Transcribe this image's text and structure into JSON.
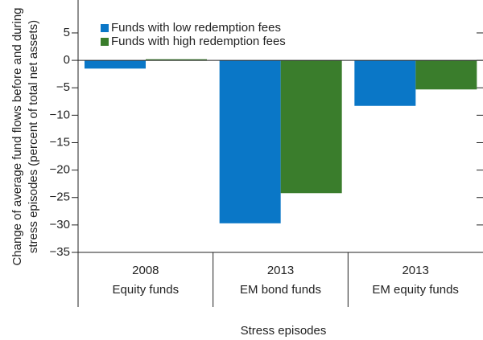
{
  "chart_data": {
    "type": "bar",
    "ylabel": [
      "Change of average fund flows before and during",
      "stress episodes (percent of total net assets)"
    ],
    "xlabel": "Stress episodes",
    "categories": [
      [
        "2008",
        "Equity funds"
      ],
      [
        "2013",
        "EM bond funds"
      ],
      [
        "2013",
        "EM equity funds"
      ]
    ],
    "series": [
      {
        "name": "Funds with low redemption fees",
        "color": "#0a77c7",
        "values": [
          -1.5,
          -29.7,
          -8.3
        ]
      },
      {
        "name": "Funds with high redemption fees",
        "color": "#3a7d2c",
        "values": [
          0.2,
          -24.2,
          -5.3
        ]
      }
    ],
    "ylim": [
      -35,
      11
    ],
    "yticks": [
      5,
      0,
      {
        "value": -5,
        "label": "−5"
      },
      {
        "value": -10,
        "label": "−10"
      },
      {
        "value": -15,
        "label": "−15"
      },
      {
        "value": -20,
        "label": "−20"
      },
      {
        "value": -25,
        "label": "−25"
      },
      {
        "value": -30,
        "label": "−30"
      },
      {
        "value": -35,
        "label": "−35"
      }
    ],
    "legend": "upper left"
  }
}
